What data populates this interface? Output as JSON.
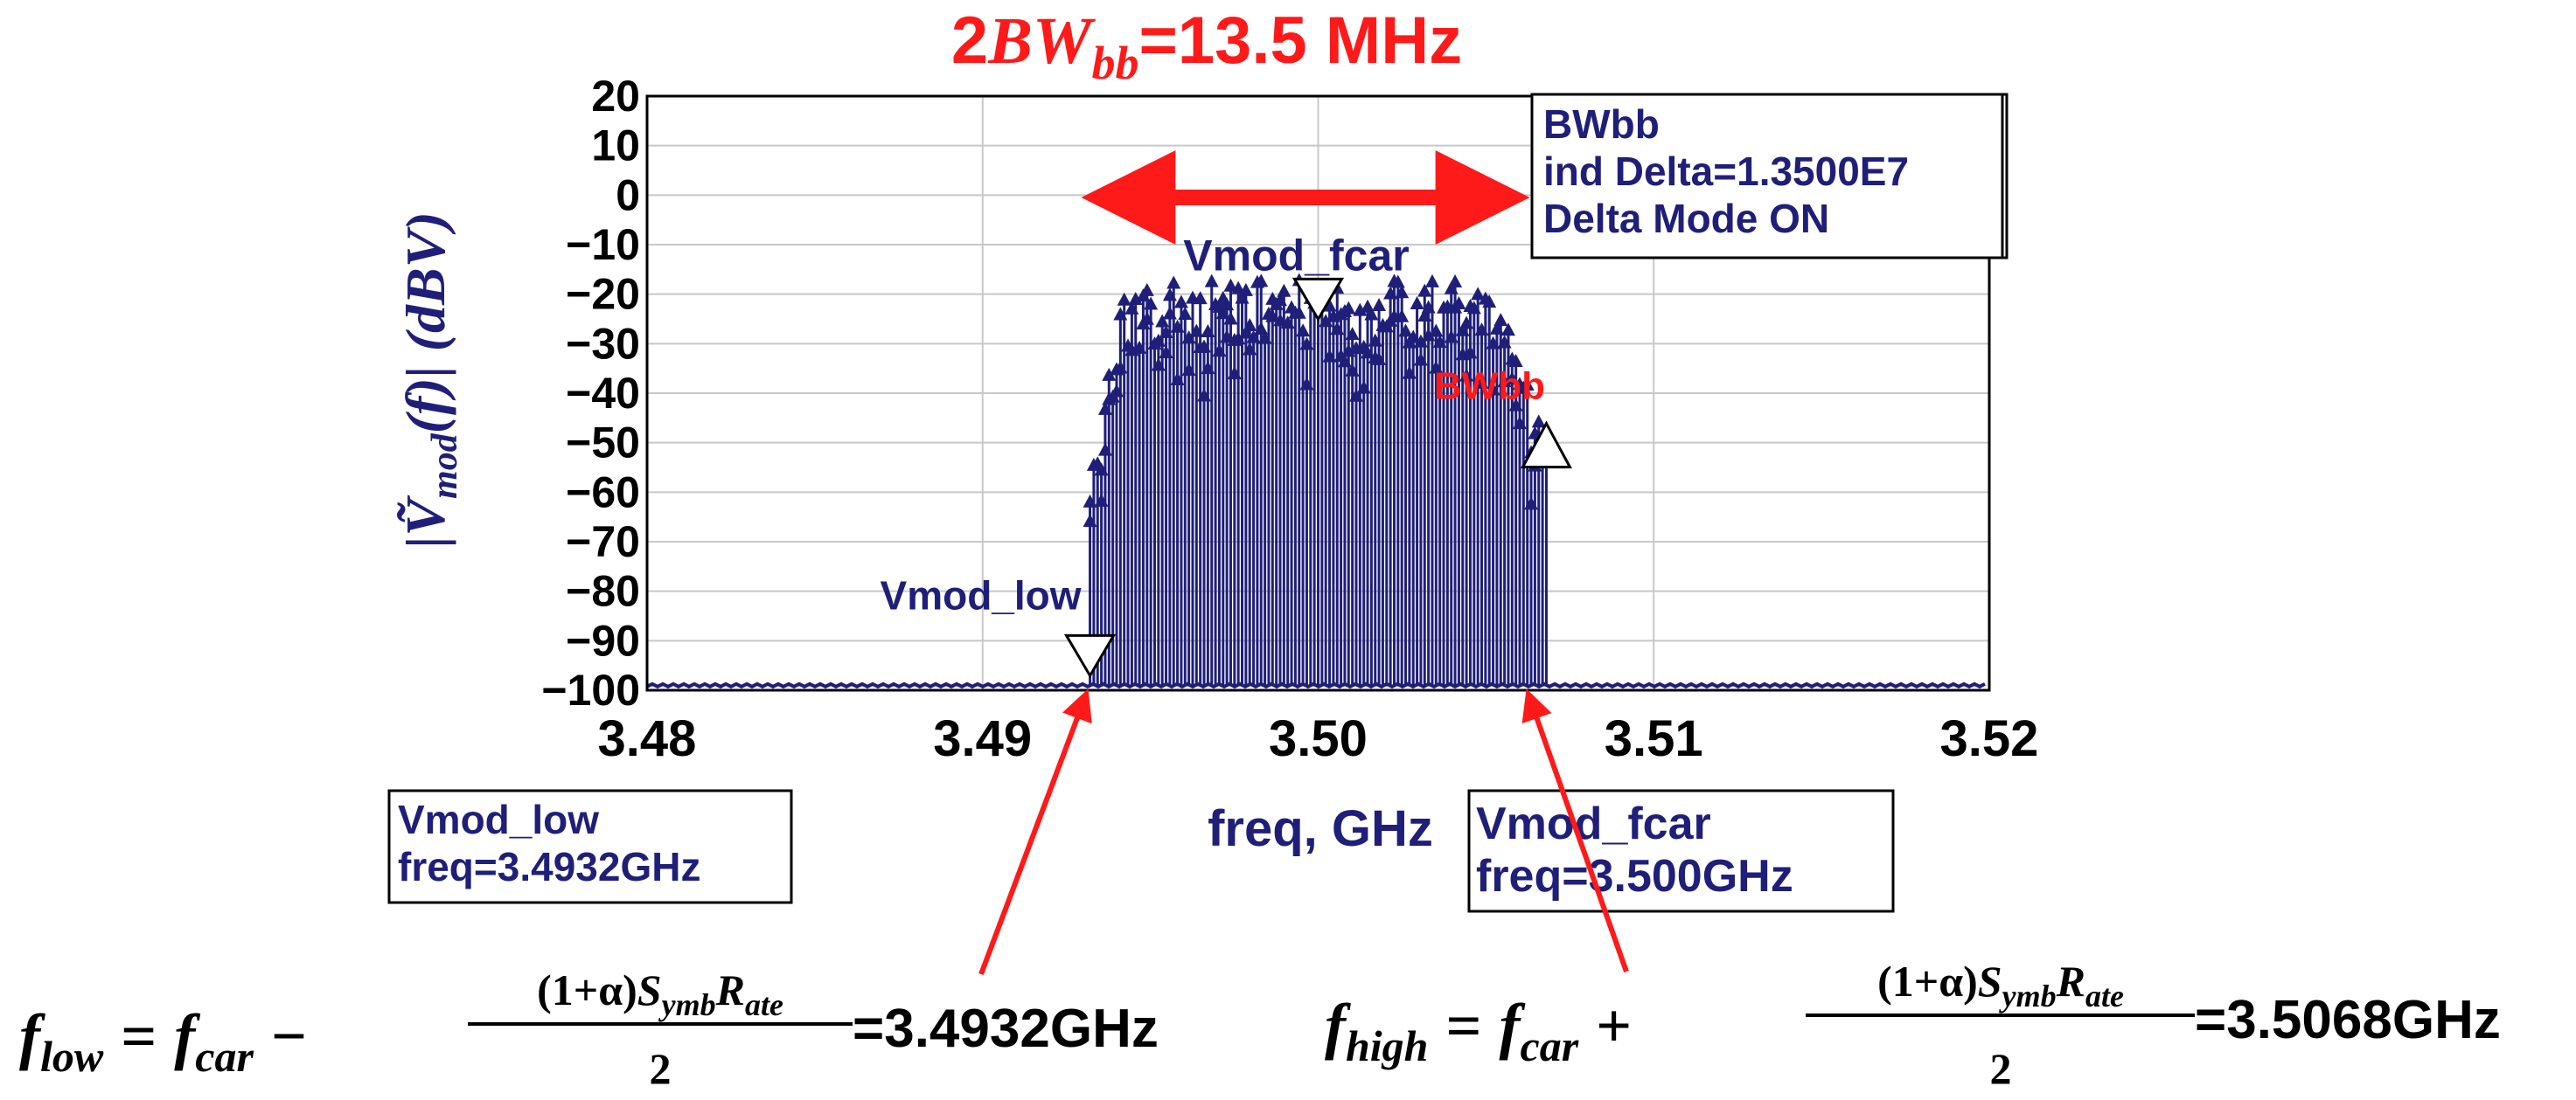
{
  "title": {
    "prefix": "2",
    "bw": "BW",
    "sub": "bb",
    "suffix": "=13.5 MHz"
  },
  "ylabel": {
    "open": "|",
    "vtilde": "Ṽ",
    "sub": "mod",
    "fargs": "(f)",
    "close": "| (dBV)"
  },
  "xlabel": "freq, GHz",
  "colors": {
    "navy": "#1f1f7a",
    "red": "#ff1a1a",
    "grid": "#c8c8c8",
    "black": "#000000"
  },
  "chart_data": {
    "type": "line",
    "xlim": [
      3.48,
      3.52
    ],
    "ylim": [
      -100,
      20
    ],
    "grid": true,
    "x_ticks": [
      "3.48",
      "3.49",
      "3.50",
      "3.51",
      "3.52"
    ],
    "x_tick_values": [
      3.48,
      3.49,
      3.5,
      3.51,
      3.52
    ],
    "y_ticks": [
      "20",
      "10",
      "0",
      "-10",
      "-20",
      "-30",
      "-40",
      "-50",
      "-60",
      "-70",
      "-80",
      "-90",
      "-100"
    ],
    "y_tick_values": [
      20,
      10,
      0,
      -10,
      -20,
      -30,
      -40,
      -50,
      -60,
      -70,
      -80,
      -90,
      -100
    ],
    "noise_floor_dbv": -99,
    "band_low_ghz": 3.4932,
    "band_high_ghz": 3.5068,
    "band_edge_low_dbv": -55,
    "band_edge_high_dbv": -50,
    "band_top_dbv": -17,
    "markers": [
      {
        "name": "Vmod_low",
        "x": 3.4932,
        "y": -96,
        "dir": "down",
        "label": "Vmod_low"
      },
      {
        "name": "Vmod_fcar",
        "x": 3.5,
        "y": -24,
        "dir": "down",
        "label": "Vmod_fcar"
      },
      {
        "name": "BWbb",
        "x": 3.5068,
        "y": -50,
        "dir": "up",
        "label": "BWbb"
      }
    ]
  },
  "delta_box": {
    "line1": "BWbb",
    "line2": "ind Delta=1.3500E7",
    "line3": "Delta Mode ON"
  },
  "low_box": {
    "line1": "Vmod_low",
    "line2": "freq=3.4932GHz"
  },
  "fcar_box": {
    "line1": "Vmod_fcar",
    "line2": "freq=3.500GHz"
  },
  "eq_low": {
    "f": "f",
    "sub": "low",
    "eq": "=",
    "fcar": "f",
    "carsub": "car",
    "minus": "−",
    "num_pre": "(1+α)",
    "S": "S",
    "Ssub": "ymb",
    "R": "R",
    "Rsub": "ate",
    "den": "2",
    "result": "=3.4932GHz"
  },
  "eq_high": {
    "f": "f",
    "sub": "high",
    "eq": "=",
    "fcar": "f",
    "carsub": "car",
    "plus": "+",
    "num_pre": "(1+α)",
    "S": "S",
    "Ssub": "ymb",
    "R": "R",
    "Rsub": "ate",
    "den": "2",
    "result": "=3.5068GHz"
  }
}
